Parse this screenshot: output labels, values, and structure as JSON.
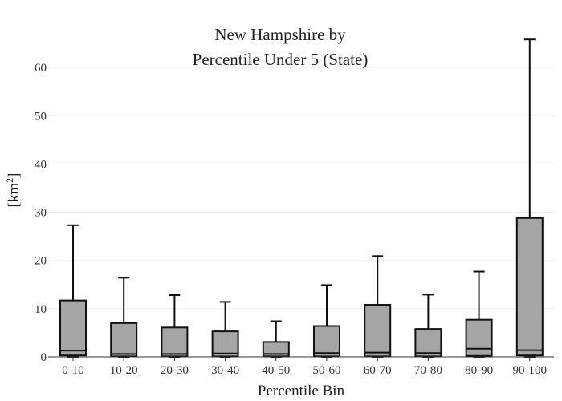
{
  "chart_data": {
    "type": "box",
    "title_lines": [
      "New Hampshire  by",
      "Percentile Under 5 (State)"
    ],
    "xlabel": "Percentile Bin",
    "ylabel_base": "[km",
    "ylabel_sup": "2",
    "ylabel_end": "]",
    "ylim": [
      0,
      68
    ],
    "yticks": [
      0,
      10,
      20,
      30,
      40,
      50,
      60
    ],
    "grid": true,
    "colors": {
      "box_fill": "#a5a5a5",
      "box_stroke": "#111111",
      "grid": "#eeeeee"
    },
    "categories": [
      "0-10",
      "10-20",
      "20-30",
      "30-40",
      "40-50",
      "50-60",
      "60-70",
      "70-80",
      "80-90",
      "90-100"
    ],
    "boxes": [
      {
        "min": 0,
        "q1": 0.3,
        "median": 1.3,
        "q3": 11.7,
        "max": 27.3
      },
      {
        "min": 0,
        "q1": 0.1,
        "median": 0.6,
        "q3": 7.0,
        "max": 16.4
      },
      {
        "min": 0,
        "q1": 0.1,
        "median": 0.6,
        "q3": 6.1,
        "max": 12.8
      },
      {
        "min": 0,
        "q1": 0.1,
        "median": 0.7,
        "q3": 5.3,
        "max": 11.4
      },
      {
        "min": 0,
        "q1": 0.1,
        "median": 0.6,
        "q3": 3.1,
        "max": 7.4
      },
      {
        "min": 0,
        "q1": 0.1,
        "median": 0.8,
        "q3": 6.4,
        "max": 14.9
      },
      {
        "min": 0,
        "q1": 0.1,
        "median": 0.9,
        "q3": 10.8,
        "max": 20.9
      },
      {
        "min": 0,
        "q1": 0.1,
        "median": 0.8,
        "q3": 5.8,
        "max": 12.9
      },
      {
        "min": 0,
        "q1": 0.2,
        "median": 1.7,
        "q3": 7.7,
        "max": 17.7
      },
      {
        "min": 0,
        "q1": 0.3,
        "median": 1.4,
        "q3": 28.8,
        "max": 65.8
      }
    ]
  }
}
